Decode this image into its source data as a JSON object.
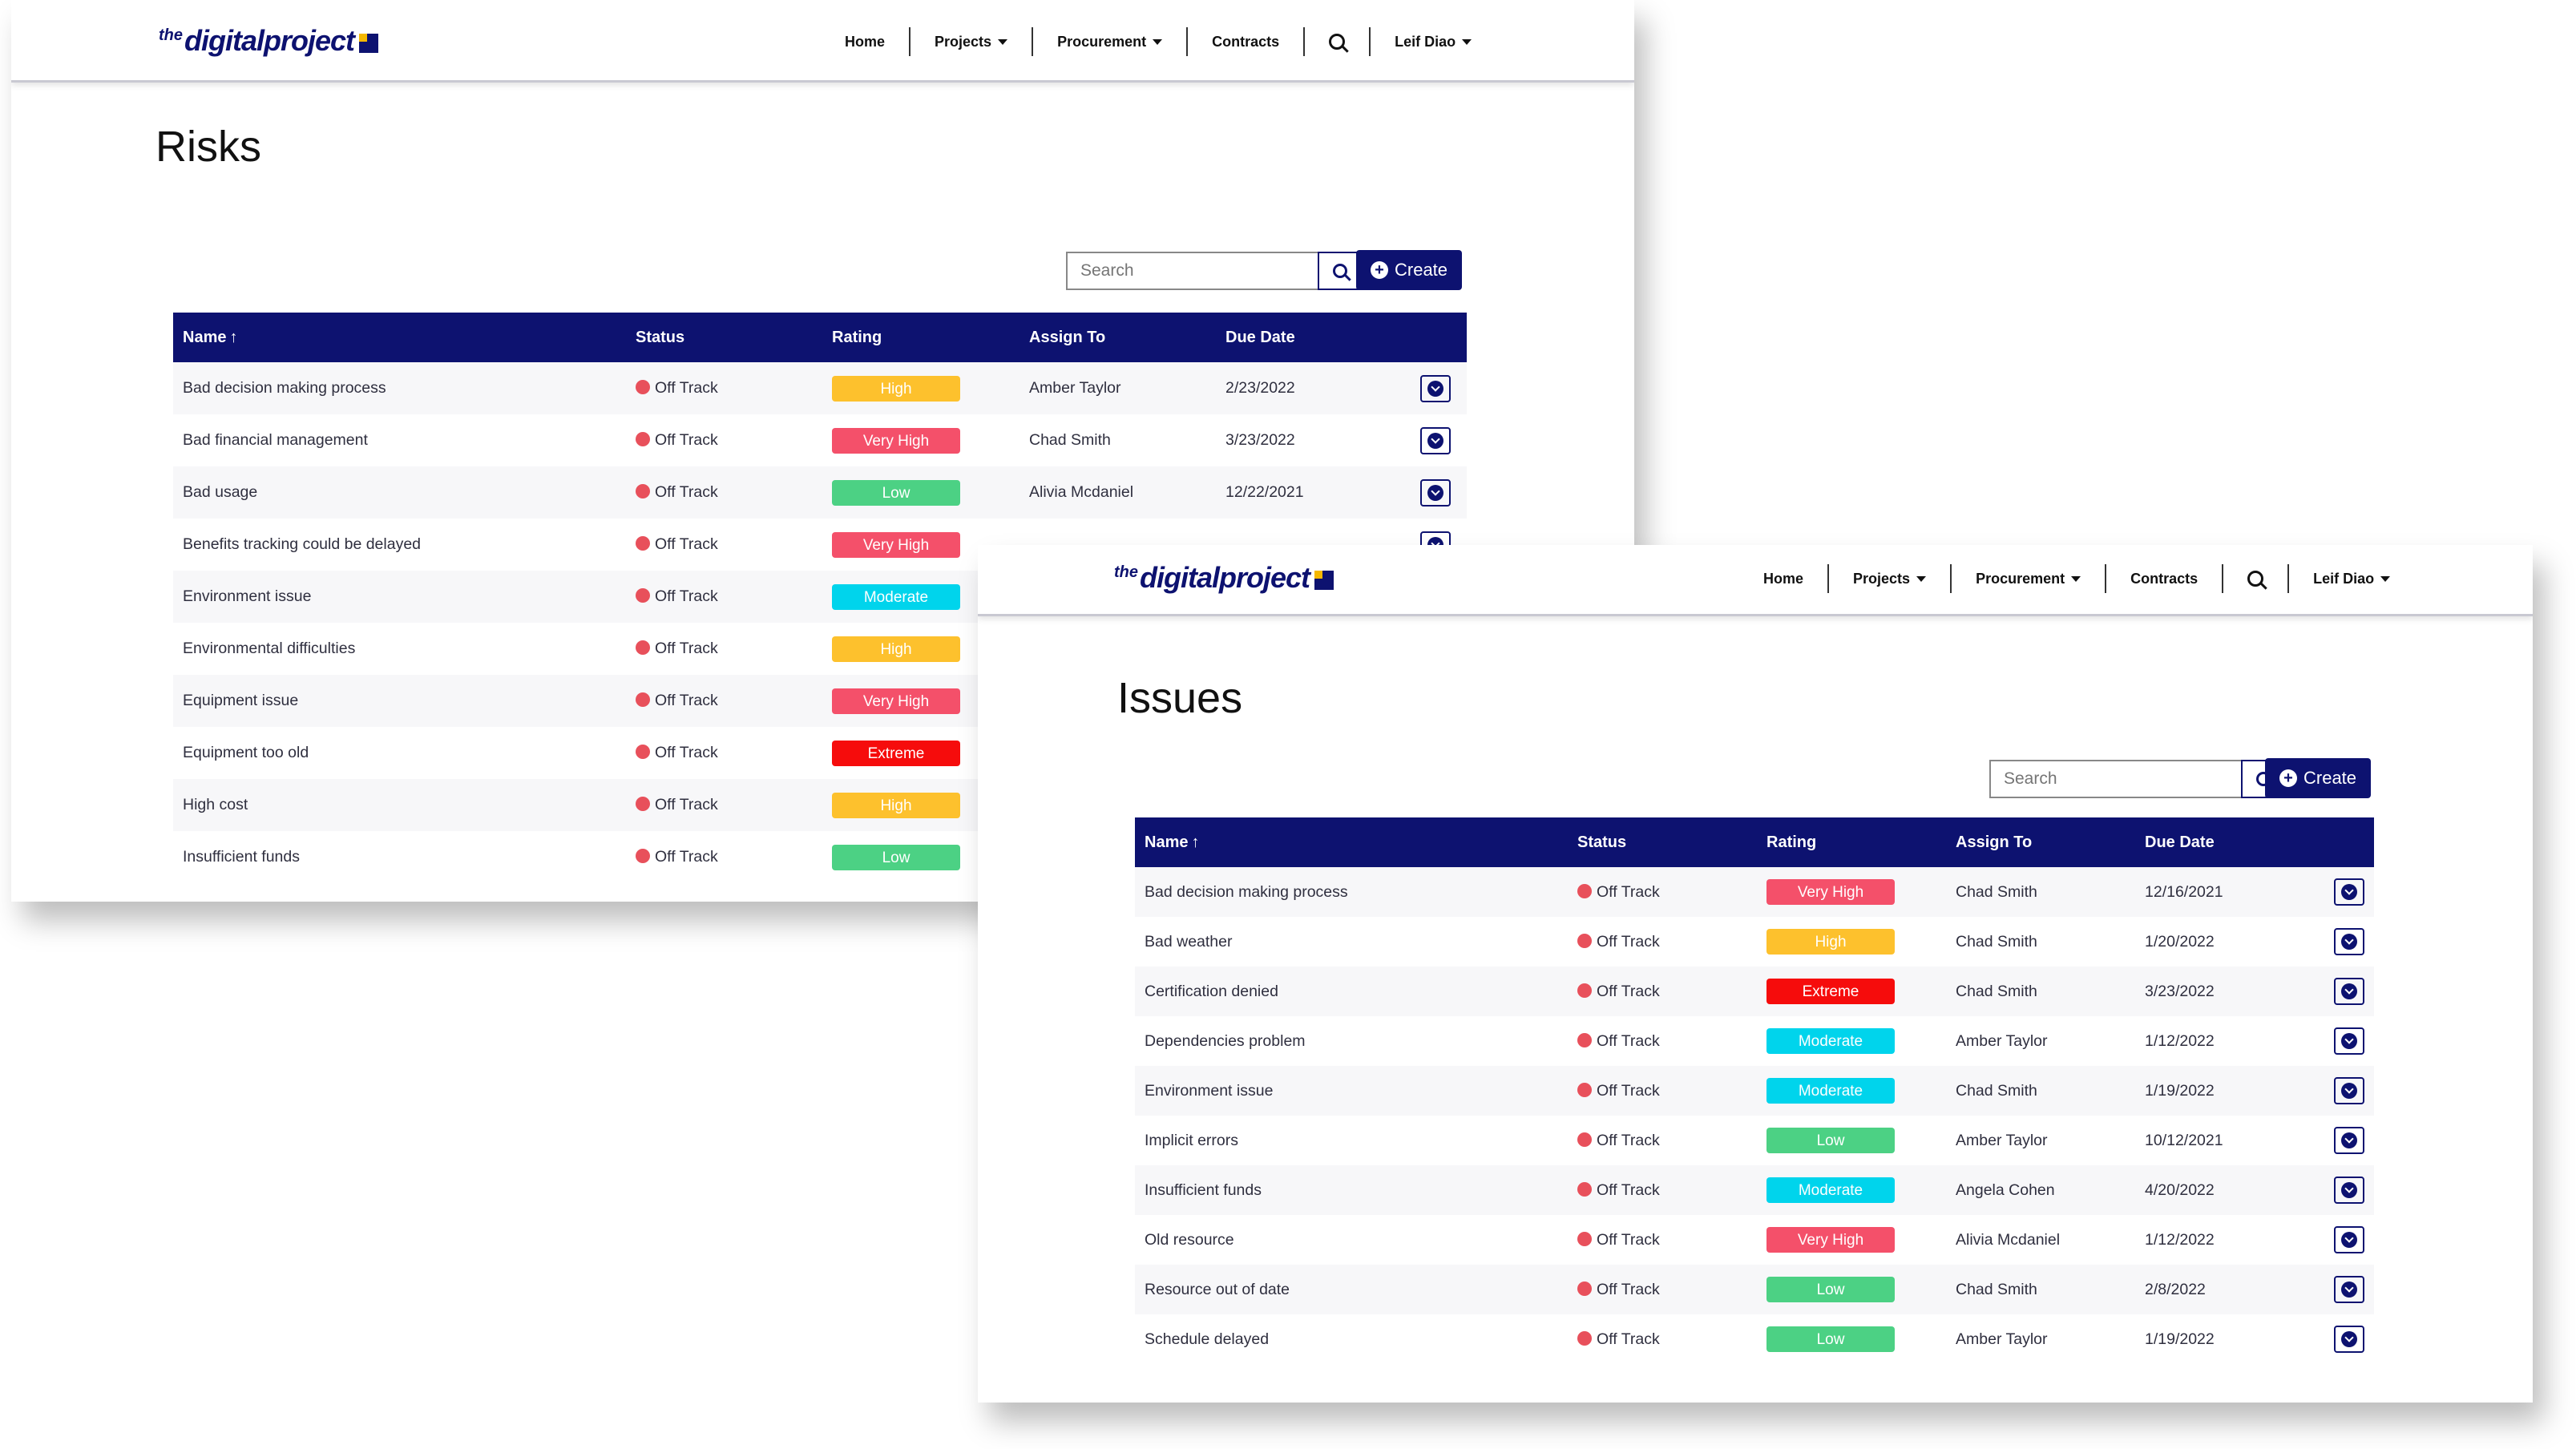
{
  "colors": {
    "brand": "#0d1270",
    "brand_accent": "#f5b800",
    "status_off_track": "#e8505b",
    "rating": {
      "Low": "#4cd184",
      "Moderate": "#00d4ec",
      "High": "#fdc12d",
      "Very High": "#f4506a",
      "Extreme": "#f60c0c"
    }
  },
  "nav": {
    "logo_the": "the",
    "logo_word": "digitalproject",
    "home": "Home",
    "projects": "Projects",
    "procurement": "Procurement",
    "contracts": "Contracts",
    "user": "Leif Diao",
    "search_icon": "search-icon",
    "dropdown_icon": "caret-down-icon"
  },
  "risks": {
    "title": "Risks",
    "search_placeholder": "Search",
    "create_label": "Create",
    "columns": [
      "Name",
      "Status",
      "Rating",
      "Assign To",
      "Due Date"
    ],
    "sort_icon": "arrow-up-icon",
    "rows": [
      {
        "name": "Bad decision making process",
        "status": "Off Track",
        "rating": "High",
        "assign_to": "Amber Taylor",
        "due_date": "2/23/2022"
      },
      {
        "name": "Bad financial management",
        "status": "Off Track",
        "rating": "Very High",
        "assign_to": "Chad Smith",
        "due_date": "3/23/2022"
      },
      {
        "name": "Bad usage",
        "status": "Off Track",
        "rating": "Low",
        "assign_to": "Alivia Mcdaniel",
        "due_date": "12/22/2021"
      },
      {
        "name": "Benefits tracking could be delayed",
        "status": "Off Track",
        "rating": "Very High",
        "assign_to": "",
        "due_date": ""
      },
      {
        "name": "Environment issue",
        "status": "Off Track",
        "rating": "Moderate",
        "assign_to": "",
        "due_date": ""
      },
      {
        "name": "Environmental difficulties",
        "status": "Off Track",
        "rating": "High",
        "assign_to": "",
        "due_date": ""
      },
      {
        "name": "Equipment issue",
        "status": "Off Track",
        "rating": "Very High",
        "assign_to": "",
        "due_date": ""
      },
      {
        "name": "Equipment too old",
        "status": "Off Track",
        "rating": "Extreme",
        "assign_to": "",
        "due_date": ""
      },
      {
        "name": "High cost",
        "status": "Off Track",
        "rating": "High",
        "assign_to": "",
        "due_date": ""
      },
      {
        "name": "Insufficient funds",
        "status": "Off Track",
        "rating": "Low",
        "assign_to": "",
        "due_date": ""
      }
    ]
  },
  "issues": {
    "title": "Issues",
    "search_placeholder": "Search",
    "create_label": "Create",
    "columns": [
      "Name",
      "Status",
      "Rating",
      "Assign To",
      "Due Date"
    ],
    "sort_icon": "arrow-up-icon",
    "rows": [
      {
        "name": "Bad decision making process",
        "status": "Off Track",
        "rating": "Very High",
        "assign_to": "Chad Smith",
        "due_date": "12/16/2021"
      },
      {
        "name": "Bad weather",
        "status": "Off Track",
        "rating": "High",
        "assign_to": "Chad Smith",
        "due_date": "1/20/2022"
      },
      {
        "name": "Certification denied",
        "status": "Off Track",
        "rating": "Extreme",
        "assign_to": "Chad Smith",
        "due_date": "3/23/2022"
      },
      {
        "name": "Dependencies problem",
        "status": "Off Track",
        "rating": "Moderate",
        "assign_to": "Amber Taylor",
        "due_date": "1/12/2022"
      },
      {
        "name": "Environment issue",
        "status": "Off Track",
        "rating": "Moderate",
        "assign_to": "Chad Smith",
        "due_date": "1/19/2022"
      },
      {
        "name": "Implicit errors",
        "status": "Off Track",
        "rating": "Low",
        "assign_to": "Amber Taylor",
        "due_date": "10/12/2021"
      },
      {
        "name": "Insufficient funds",
        "status": "Off Track",
        "rating": "Moderate",
        "assign_to": "Angela Cohen",
        "due_date": "4/20/2022"
      },
      {
        "name": "Old resource",
        "status": "Off Track",
        "rating": "Very High",
        "assign_to": "Alivia Mcdaniel",
        "due_date": "1/12/2022"
      },
      {
        "name": "Resource out of date",
        "status": "Off Track",
        "rating": "Low",
        "assign_to": "Chad Smith",
        "due_date": "2/8/2022"
      },
      {
        "name": "Schedule delayed",
        "status": "Off Track",
        "rating": "Low",
        "assign_to": "Amber Taylor",
        "due_date": "1/19/2022"
      }
    ]
  }
}
